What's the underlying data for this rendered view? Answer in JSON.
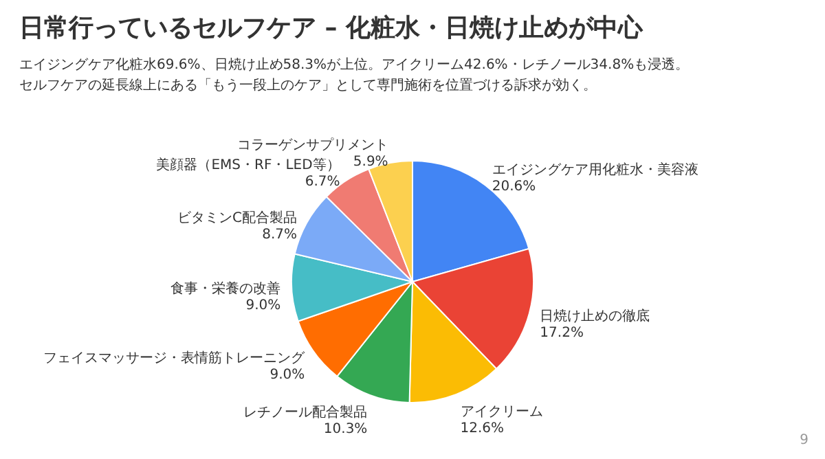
{
  "chart_data": {
    "type": "pie",
    "title": "日常行っているセルフケア – 化粧水・日焼け止めが中心",
    "subtitle": "エイジングケア化粧水69.6%、日焼け止め58.3%が上位。アイクリーム42.6%・レチノール34.8%も浸透。",
    "categories": [
      "エイジングケア用化粧水・美容液",
      "日焼け止めの徹底",
      "アイクリーム",
      "レチノール配合製品",
      "フェイスマッサージ・表情筋トレーニング",
      "食事・栄養の改善",
      "ビタミンC配合製品",
      "美顔器（EMS・RF・LED等）",
      "コラーゲンサプリメント"
    ],
    "values": [
      20.6,
      17.2,
      12.6,
      10.3,
      9.0,
      9.0,
      8.7,
      6.7,
      5.9
    ],
    "value_labels": [
      "20.6%",
      "17.2%",
      "12.6%",
      "10.3%",
      "9.0%",
      "9.0%",
      "8.7%",
      "6.7%",
      "5.9%"
    ],
    "colors": [
      "#4285f4",
      "#ea4335",
      "#fbbc04",
      "#34a853",
      "#ff6d01",
      "#46bdc6",
      "#7baaf7",
      "#f07b72",
      "#fcd04f"
    ],
    "annotations": [
      "セルフケアの延長線上にある「もう一段上のケア」として専門施術を位置づける訴求が効く。",
      "9"
    ]
  }
}
